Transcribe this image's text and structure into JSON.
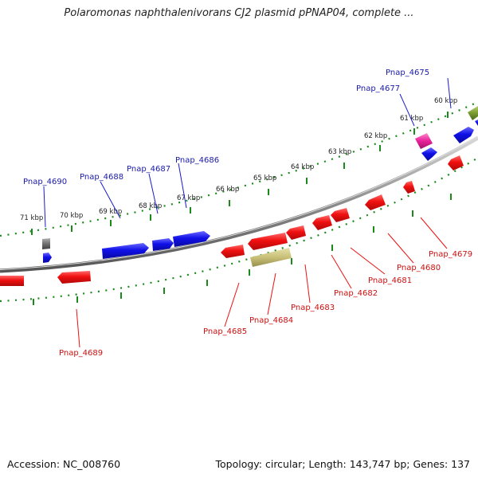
{
  "title": "Polaromonas naphthalenivorans CJ2 plasmid pPNAP04, complete ...",
  "footer": {
    "accession": "Accession: NC_008760",
    "summary": "Topology: circular; Length: 143,747 bp; Genes: 137"
  },
  "colors": {
    "forward": "#1f1fe0",
    "reverse": "#ee1111",
    "ruler": "#1a8a1a",
    "backbone": "#888888",
    "label_forward": "#1a1aa8",
    "label_reverse": "#cc1010",
    "magenta": "#e8209a",
    "olive": "#c8c078",
    "gray": "#707070",
    "green_feature": "#7a9a30"
  },
  "ruler_labels": [
    "60 kbp",
    "61 kbp",
    "62 kbp",
    "63 kbp",
    "64 kbp",
    "65 kbp",
    "66 kbp",
    "67 kbp",
    "68 kbp",
    "69 kbp",
    "70 kbp",
    "71 kbp"
  ],
  "forward_labels": [
    "Pnap_4675",
    "Pnap_4677",
    "Pnap_4686",
    "Pnap_4687",
    "Pnap_4688",
    "Pnap_4690"
  ],
  "reverse_labels": [
    "Pnap_4679",
    "Pnap_4680",
    "Pnap_4681",
    "Pnap_4682",
    "Pnap_4683",
    "Pnap_4684",
    "Pnap_4685",
    "Pnap_4689"
  ]
}
